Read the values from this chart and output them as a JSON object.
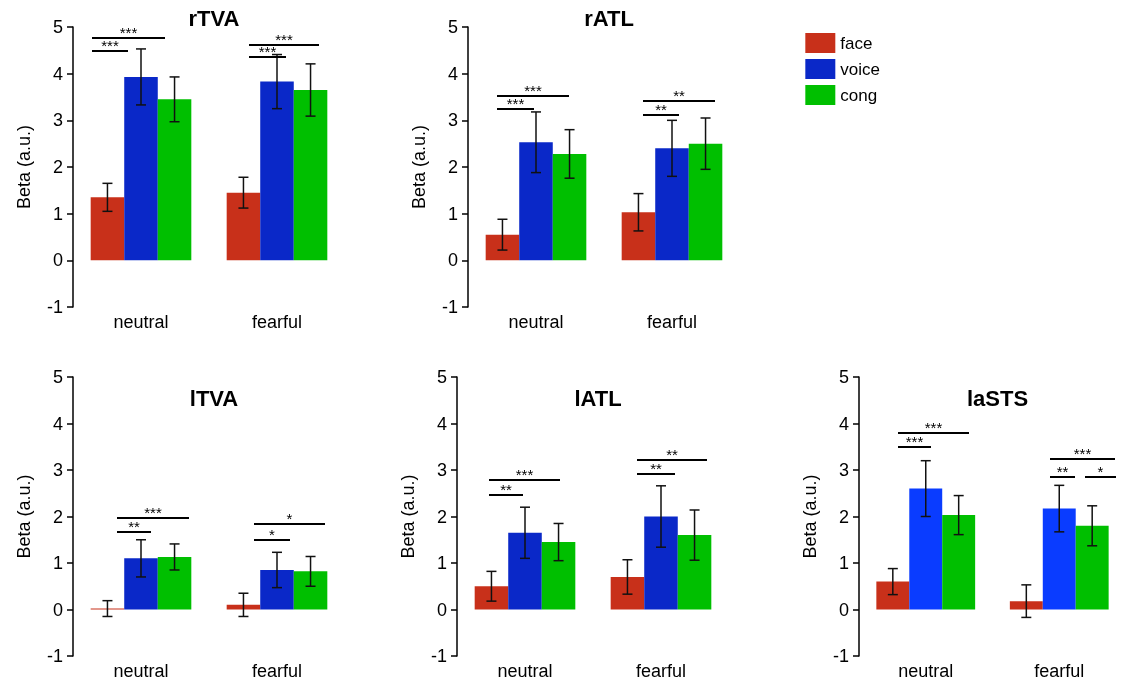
{
  "chart_data": [
    {
      "type": "bar",
      "title": "rTVA",
      "ylabel": "Beta (a.u.)",
      "categories": [
        "neutral",
        "fearful"
      ],
      "ylim": [
        -1,
        5
      ],
      "yticks": [
        -1,
        0,
        1,
        2,
        3,
        4,
        5
      ],
      "grid": false,
      "legend": false,
      "series": [
        {
          "color": "#c8301a",
          "values": [
            1.35,
            1.45
          ],
          "errors": [
            0.3,
            0.33
          ]
        },
        {
          "color": "#0a28c8",
          "values": [
            3.93,
            3.83
          ],
          "errors": [
            0.6,
            0.58
          ]
        },
        {
          "color": "#00bf00",
          "values": [
            3.45,
            3.65
          ],
          "errors": [
            0.48,
            0.56
          ]
        }
      ],
      "annotations": [
        "***",
        "***",
        "***",
        "***"
      ]
    },
    {
      "type": "bar",
      "title": "rATL",
      "ylabel": "Beta (a.u.)",
      "categories": [
        "neutral",
        "fearful"
      ],
      "ylim": [
        -1,
        5
      ],
      "yticks": [
        -1,
        0,
        1,
        2,
        3,
        4,
        5
      ],
      "grid": false,
      "legend": "right",
      "series": [
        {
          "name": "face",
          "color": "#c8301a",
          "values": [
            0.55,
            1.03
          ],
          "errors": [
            0.33,
            0.4
          ]
        },
        {
          "name": "voice",
          "color": "#0a28c8",
          "values": [
            2.53,
            2.4
          ],
          "errors": [
            0.65,
            0.6
          ]
        },
        {
          "name": "cong",
          "color": "#00bf00",
          "values": [
            2.28,
            2.5
          ],
          "errors": [
            0.52,
            0.55
          ]
        }
      ],
      "annotations": [
        "***",
        "***",
        "**",
        "**"
      ]
    },
    {
      "type": "bar",
      "title": "lTVA",
      "ylabel": "Beta (a.u.)",
      "categories": [
        "neutral",
        "fearful"
      ],
      "ylim": [
        -1,
        5
      ],
      "yticks": [
        -1,
        0,
        1,
        2,
        3,
        4,
        5
      ],
      "grid": false,
      "legend": false,
      "series": [
        {
          "color": "#c8301a",
          "values": [
            0.02,
            0.1
          ],
          "errors": [
            0.17,
            0.25
          ]
        },
        {
          "color": "#0a28c8",
          "values": [
            1.1,
            0.85
          ],
          "errors": [
            0.4,
            0.38
          ]
        },
        {
          "color": "#00bf00",
          "values": [
            1.13,
            0.82
          ],
          "errors": [
            0.28,
            0.32
          ]
        }
      ],
      "annotations": [
        "***",
        "**",
        "*",
        "*"
      ]
    },
    {
      "type": "bar",
      "title": "lATL",
      "ylabel": "Beta (a.u.)",
      "categories": [
        "neutral",
        "fearful"
      ],
      "ylim": [
        -1,
        5
      ],
      "yticks": [
        -1,
        0,
        1,
        2,
        3,
        4,
        5
      ],
      "grid": false,
      "legend": false,
      "series": [
        {
          "color": "#c8301a",
          "values": [
            0.5,
            0.7
          ],
          "errors": [
            0.32,
            0.37
          ]
        },
        {
          "color": "#0a28c8",
          "values": [
            1.65,
            2.0
          ],
          "errors": [
            0.55,
            0.66
          ]
        },
        {
          "color": "#00bf00",
          "values": [
            1.45,
            1.6
          ],
          "errors": [
            0.4,
            0.54
          ]
        }
      ],
      "annotations": [
        "***",
        "**",
        "**",
        "**"
      ]
    },
    {
      "type": "bar",
      "title": "laSTS",
      "ylabel": "Beta (a.u.)",
      "categories": [
        "neutral",
        "fearful"
      ],
      "ylim": [
        -1,
        5
      ],
      "yticks": [
        -1,
        0,
        1,
        2,
        3,
        4,
        5
      ],
      "grid": false,
      "legend": false,
      "series": [
        {
          "color": "#c8301a",
          "values": [
            0.6,
            0.18
          ],
          "errors": [
            0.28,
            0.35
          ]
        },
        {
          "color": "#0a3cff",
          "values": [
            2.6,
            2.17
          ],
          "errors": [
            0.6,
            0.5
          ]
        },
        {
          "color": "#00bf00",
          "values": [
            2.03,
            1.8
          ],
          "errors": [
            0.42,
            0.43
          ]
        }
      ],
      "annotations": [
        "***",
        "***",
        "***",
        "**",
        "*"
      ]
    }
  ]
}
